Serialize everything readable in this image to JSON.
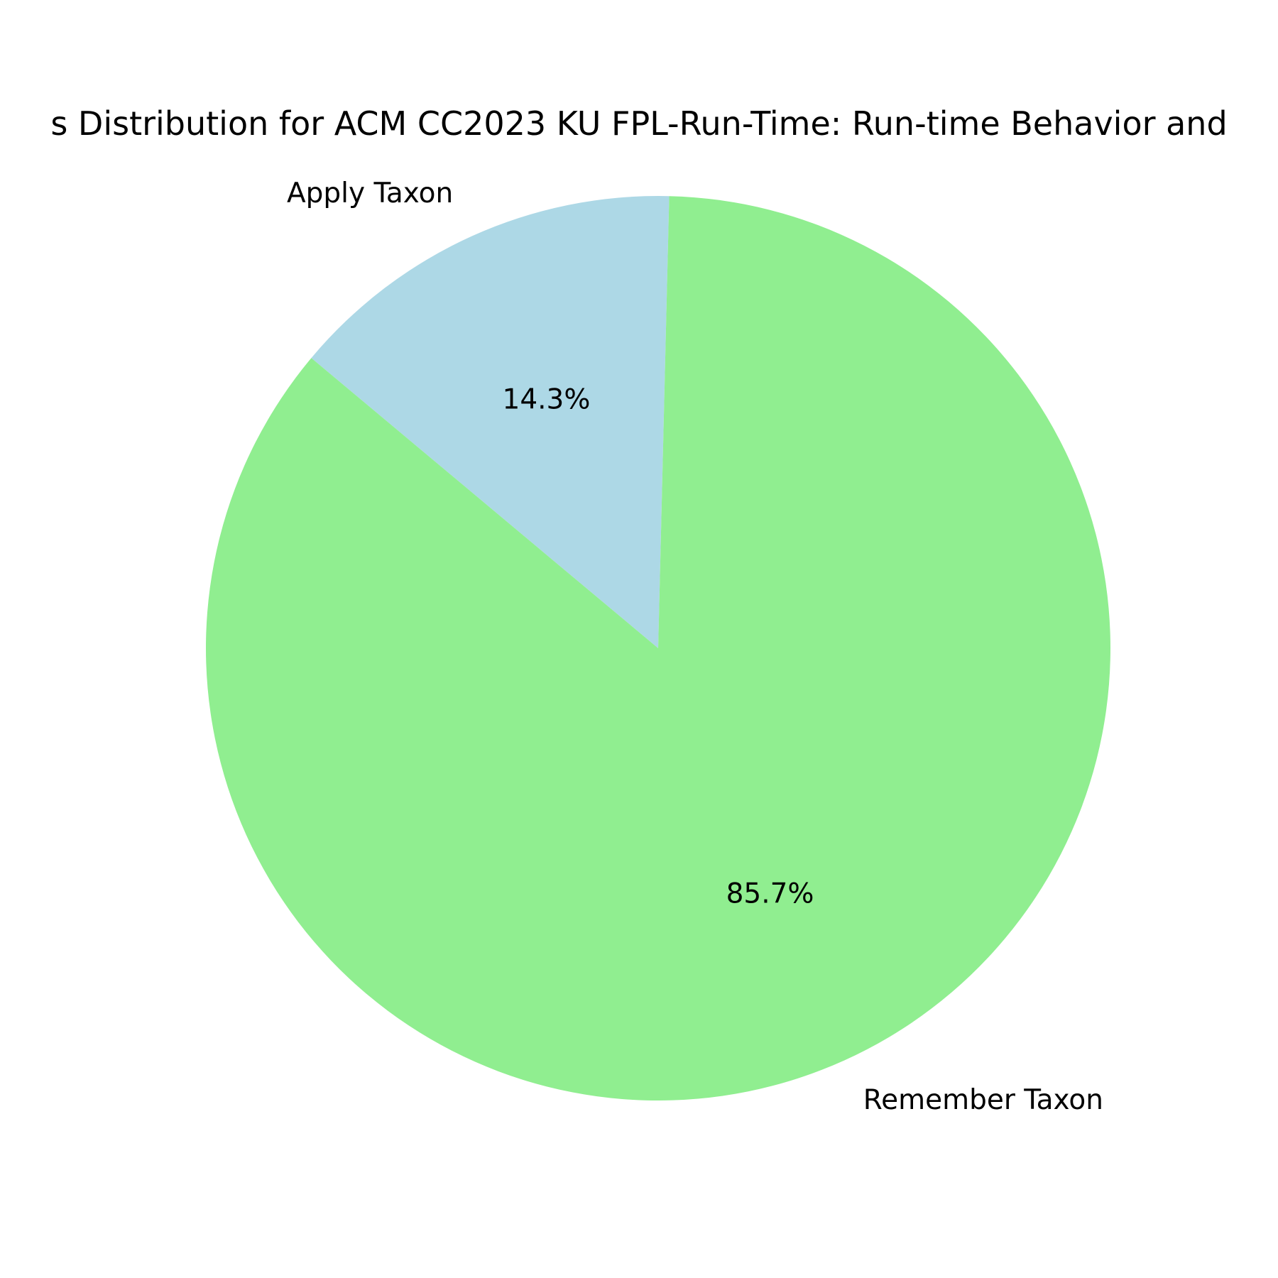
{
  "chart_data": {
    "type": "pie",
    "title": "s Distribution for ACM CC2023 KU FPL-Run-Time: Run-time Behavior and",
    "slices": [
      {
        "label": "Apply Taxon",
        "value": 14.3,
        "pct_label": "14.3%",
        "color": "#add8e6"
      },
      {
        "label": "Remember Taxon",
        "value": 85.7,
        "pct_label": "85.7%",
        "color": "#90ee90"
      }
    ],
    "start_angle_deg": 88.6,
    "direction": "counterclockwise",
    "legend": "none"
  }
}
